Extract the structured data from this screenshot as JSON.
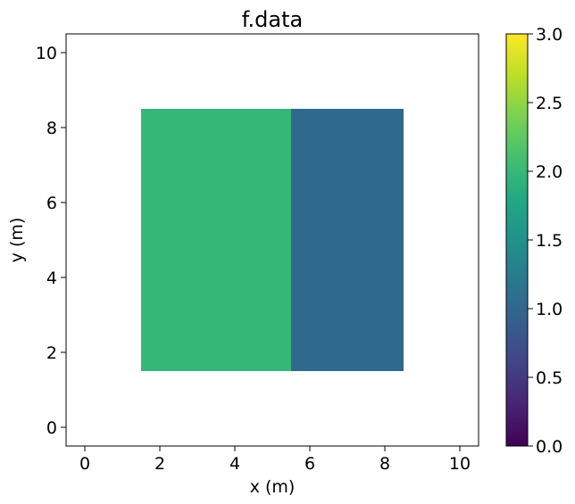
{
  "chart_data": {
    "type": "heatmap",
    "title": "f.data",
    "xlabel": "x (m)",
    "ylabel": "y (m)",
    "xlim": [
      -0.5,
      10.5
    ],
    "ylim": [
      -0.5,
      10.5
    ],
    "xticks": [
      0,
      2,
      4,
      6,
      8,
      10
    ],
    "yticks": [
      0,
      2,
      4,
      6,
      8,
      10
    ],
    "grid": false,
    "colormap": "viridis",
    "clim": [
      0.0,
      3.0
    ],
    "colorbar_ticks": [
      "0.0",
      "0.5",
      "1.0",
      "1.5",
      "2.0",
      "2.5",
      "3.0"
    ],
    "cells": [
      {
        "x0": 1.5,
        "x1": 5.5,
        "y0": 1.5,
        "y1": 8.5,
        "value": 2.0,
        "color": "#35b779"
      },
      {
        "x0": 5.5,
        "x1": 8.5,
        "y0": 1.5,
        "y1": 8.5,
        "value": 1.0,
        "color": "#31688e"
      }
    ]
  }
}
